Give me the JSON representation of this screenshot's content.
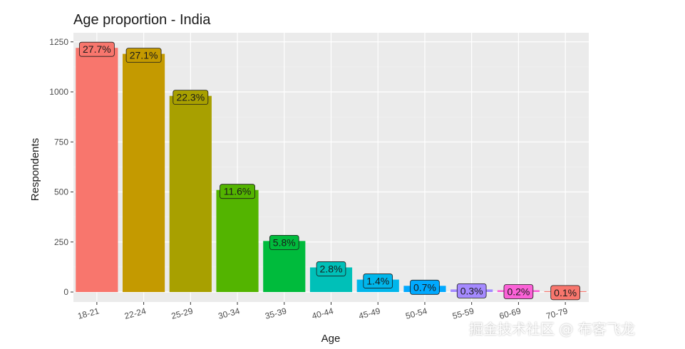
{
  "chart_data": {
    "type": "bar",
    "title": "Age proportion - India",
    "xlabel": "Age",
    "ylabel": "Respondents",
    "ylim": [
      0,
      1290
    ],
    "yticks": [
      0,
      250,
      500,
      750,
      1000,
      1250
    ],
    "grid": true,
    "categories": [
      "18-21",
      "22-24",
      "25-29",
      "30-34",
      "35-39",
      "40-44",
      "45-49",
      "50-54",
      "55-59",
      "60-69",
      "70-79"
    ],
    "values": [
      1220,
      1190,
      980,
      510,
      255,
      123,
      62,
      31,
      13,
      9,
      4
    ],
    "labels": [
      "27.7%",
      "27.1%",
      "22.3%",
      "11.6%",
      "5.8%",
      "2.8%",
      "1.4%",
      "0.7%",
      "0.3%",
      "0.2%",
      "0.1%"
    ],
    "colors": [
      "#F8766D",
      "#C49A00",
      "#A8A000",
      "#53B400",
      "#00BB3C",
      "#00C0B8",
      "#00B6EB",
      "#00A9FF",
      "#A58AFF",
      "#FB61D7",
      "#F8766D"
    ]
  },
  "watermark": "掘金技术社区 @ 布客飞龙"
}
